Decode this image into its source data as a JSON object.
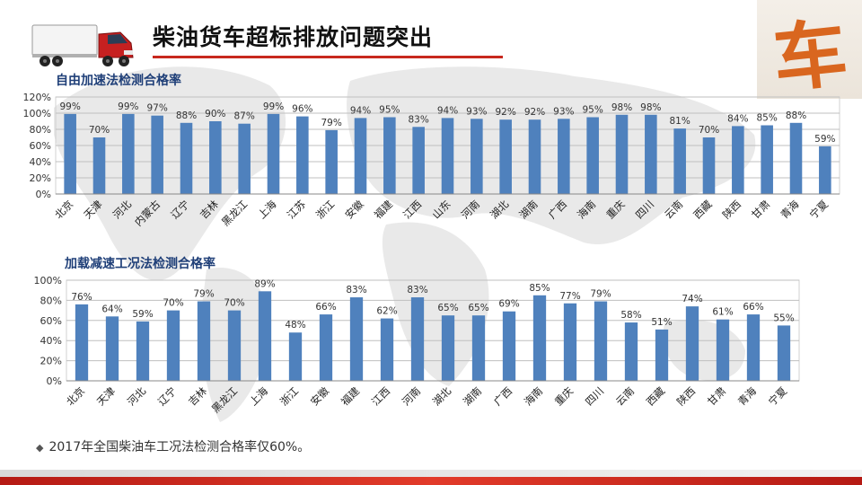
{
  "page": {
    "title": "柴油货车超标排放问题突出",
    "logo_char": "车",
    "footnote": "2017年全国柴油车工况法检测合格率仅60%。"
  },
  "colors": {
    "bar": "#4f81bd",
    "title_blue": "#1f3f78",
    "accent_red": "#c8281e",
    "logo_orange": "#d9661f"
  },
  "chart_data": [
    {
      "type": "bar",
      "title": "自由加速法检测合格率",
      "categories": [
        "北京",
        "天津",
        "河北",
        "内蒙古",
        "辽宁",
        "吉林",
        "黑龙江",
        "上海",
        "江苏",
        "浙江",
        "安徽",
        "福建",
        "江西",
        "山东",
        "河南",
        "湖北",
        "湖南",
        "广西",
        "海南",
        "重庆",
        "四川",
        "云南",
        "西藏",
        "陕西",
        "甘肃",
        "青海",
        "宁夏"
      ],
      "values": [
        99,
        70,
        99,
        97,
        88,
        90,
        87,
        99,
        96,
        79,
        94,
        95,
        83,
        94,
        93,
        92,
        92,
        93,
        95,
        98,
        98,
        81,
        70,
        84,
        85,
        88,
        59
      ],
      "data_labels": [
        "99%",
        "70%",
        "99%",
        "97%",
        "88%",
        "90%",
        "87%",
        "99%",
        "96%",
        "79%",
        "94%",
        "95%",
        "83%",
        "94%",
        "93%",
        "92%",
        "92%",
        "93%",
        "95%",
        "98%",
        "98%",
        "81%",
        "70%",
        "84%",
        "85%",
        "88%",
        "59%"
      ],
      "y_ticks": [
        0,
        20,
        40,
        60,
        80,
        100,
        120
      ],
      "y_tick_labels": [
        "0%",
        "20%",
        "40%",
        "60%",
        "80%",
        "100%",
        "120%"
      ],
      "ylim": [
        0,
        120
      ],
      "grid": true
    },
    {
      "type": "bar",
      "title": "加载减速工况法检测合格率",
      "categories": [
        "北京",
        "天津",
        "河北",
        "辽宁",
        "吉林",
        "黑龙江",
        "上海",
        "浙江",
        "安徽",
        "福建",
        "江西",
        "河南",
        "湖北",
        "湖南",
        "广西",
        "海南",
        "重庆",
        "四川",
        "云南",
        "西藏",
        "陕西",
        "甘肃",
        "青海",
        "宁夏"
      ],
      "values": [
        76,
        64,
        59,
        70,
        79,
        70,
        89,
        48,
        66,
        83,
        62,
        83,
        65,
        65,
        69,
        85,
        77,
        79,
        58,
        51,
        74,
        61,
        66,
        55
      ],
      "data_labels": [
        "76%",
        "64%",
        "59%",
        "70%",
        "79%",
        "70%",
        "89%",
        "48%",
        "66%",
        "83%",
        "62%",
        "83%",
        "65%",
        "65%",
        "69%",
        "85%",
        "77%",
        "79%",
        "58%",
        "51%",
        "74%",
        "61%",
        "66%",
        "55%"
      ],
      "y_ticks": [
        0,
        20,
        40,
        60,
        80,
        100
      ],
      "y_tick_labels": [
        "0%",
        "20%",
        "40%",
        "60%",
        "80%",
        "100%"
      ],
      "ylim": [
        0,
        100
      ],
      "grid": true
    }
  ]
}
